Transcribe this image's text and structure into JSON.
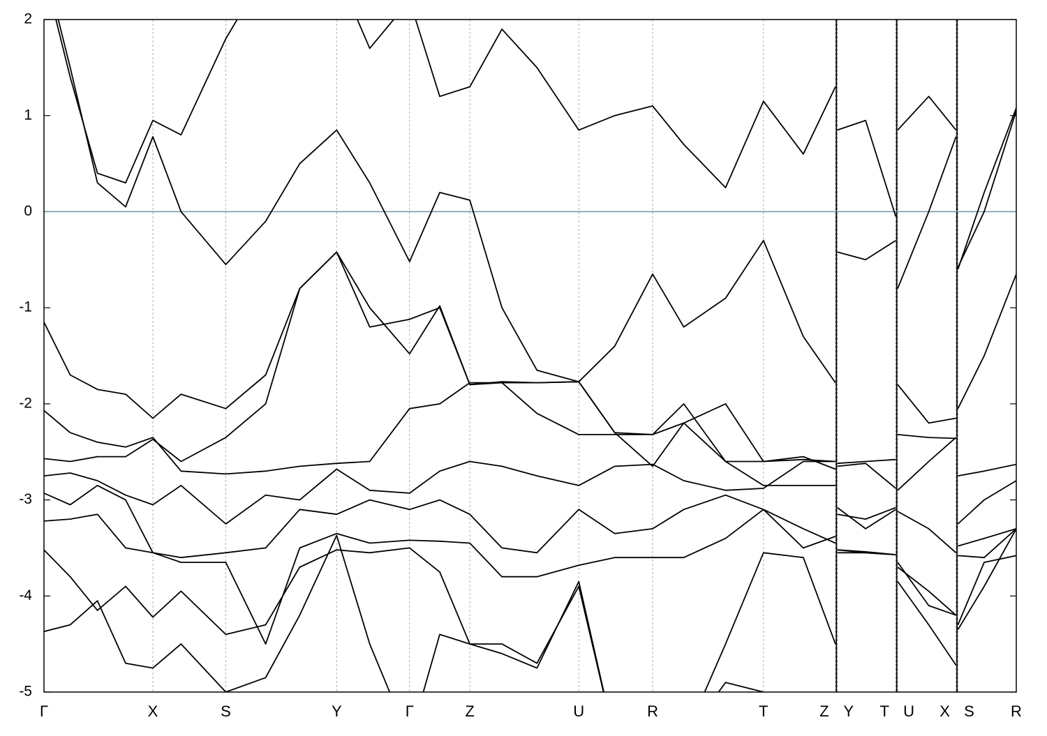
{
  "chart_data": {
    "type": "line",
    "x": [
      0,
      0.027,
      0.055,
      0.084,
      0.112,
      0.141,
      0.187,
      0.228,
      0.263,
      0.301,
      0.335,
      0.376,
      0.407,
      0.438,
      0.471,
      0.507,
      0.55,
      0.587,
      0.626,
      0.658,
      0.701,
      0.74,
      0.781,
      0.814,
      0.815,
      0.816,
      0.845,
      0.876,
      0.877,
      0.878,
      0.91,
      0.938,
      0.939,
      0.94,
      0.967,
      1
    ],
    "series": [
      {
        "color": "#000000",
        "values": [
          2.6,
          1.5,
          0.3,
          0.05,
          0.78,
          0.0,
          -0.55,
          -0.1,
          0.5,
          0.85,
          0.3,
          -0.52,
          0.2,
          0.12,
          -1.0,
          -1.65,
          -1.77,
          -1.4,
          -0.65,
          -1.2,
          -0.9,
          -0.3,
          -1.3,
          -1.78,
          null,
          -0.42,
          -0.5,
          -0.3,
          null,
          -0.8,
          0.0,
          0.78,
          null,
          -0.58,
          0.0,
          1.05
        ]
      },
      {
        "color": "#000000",
        "values": [
          2.5,
          1.4,
          0.4,
          0.3,
          0.95,
          0.8,
          1.8,
          2.5,
          2.5,
          2.5,
          1.7,
          2.2,
          1.2,
          1.3,
          1.9,
          1.5,
          0.85,
          1.0,
          1.1,
          0.7,
          0.25,
          1.15,
          0.6,
          1.3,
          null,
          0.85,
          0.95,
          -0.05,
          null,
          0.85,
          1.2,
          0.85,
          null,
          -0.6,
          0.2,
          1.08
        ]
      },
      {
        "color": "#000000",
        "values": [
          -1.15,
          -1.7,
          -1.85,
          -1.9,
          -2.15,
          -1.9,
          -2.05,
          -1.7,
          -0.8,
          -0.42,
          -1.2,
          -1.12,
          -1.0,
          -1.8,
          -1.77,
          -1.78,
          -1.77,
          -2.3,
          -2.32,
          -2.2,
          -2.0,
          -2.6,
          -2.58,
          -2.6,
          null,
          -2.62,
          -2.6,
          -2.58,
          null,
          -1.8,
          -2.2,
          -2.15,
          null,
          -2.05,
          -1.5,
          -0.65
        ]
      },
      {
        "color": "#000000",
        "values": [
          -2.07,
          -2.3,
          -2.4,
          -2.45,
          -2.35,
          -2.7,
          -2.73,
          -2.7,
          -2.65,
          -2.62,
          -2.6,
          -2.05,
          -2.0,
          -1.78,
          -1.78,
          -2.1,
          -2.32,
          -2.32,
          -2.32,
          -2.0,
          -2.6,
          -2.6,
          -2.55,
          -2.68,
          null,
          -2.65,
          -2.62,
          -2.88,
          null,
          -2.32,
          -2.35,
          -2.36,
          null,
          -2.75,
          -2.7,
          -2.63
        ]
      },
      {
        "color": "#000000",
        "values": [
          -2.57,
          -2.6,
          -2.55,
          -2.55,
          -2.37,
          -2.6,
          -2.35,
          -2.0,
          -0.8,
          -0.42,
          -1.0,
          -1.48,
          -0.98,
          -1.8,
          -1.78,
          -1.78,
          -1.77,
          -2.3,
          -2.65,
          -2.2,
          -2.6,
          -2.85,
          -2.85,
          -2.85,
          null,
          -3.15,
          -3.2,
          -3.08,
          null,
          -2.9,
          -2.6,
          -2.35,
          null,
          -3.25,
          -3.0,
          -2.8
        ]
      },
      {
        "color": "#000000",
        "values": [
          -2.75,
          -2.72,
          -2.8,
          -2.95,
          -3.05,
          -2.85,
          -3.25,
          -2.95,
          -3.0,
          -2.68,
          -2.9,
          -2.93,
          -2.7,
          -2.6,
          -2.65,
          -2.75,
          -2.85,
          -2.65,
          -2.63,
          -2.8,
          -2.9,
          -2.88,
          -2.6,
          -2.6,
          null,
          -3.08,
          -3.3,
          -3.1,
          null,
          -3.12,
          -3.3,
          -3.55,
          null,
          -3.48,
          -3.4,
          -3.3
        ]
      },
      {
        "color": "#000000",
        "values": [
          -2.93,
          -3.05,
          -2.85,
          -3.0,
          -3.55,
          -3.6,
          -3.55,
          -3.5,
          -3.1,
          -3.15,
          -3.0,
          -3.1,
          -3.0,
          -3.15,
          -3.5,
          -3.55,
          -3.1,
          -3.35,
          -3.3,
          -3.1,
          -2.95,
          -3.1,
          -3.3,
          -3.45,
          null,
          -3.52,
          -3.55,
          -3.57,
          null,
          -3.7,
          -3.95,
          -4.2,
          null,
          -4.3,
          -3.65,
          -3.58
        ]
      },
      {
        "color": "#000000",
        "values": [
          -3.22,
          -3.2,
          -3.15,
          -3.5,
          -3.55,
          -3.65,
          -3.65,
          -4.5,
          -3.5,
          -3.35,
          -3.45,
          -3.42,
          -3.43,
          -3.45,
          -3.8,
          -3.8,
          -3.68,
          -3.6,
          -3.6,
          -3.6,
          -3.4,
          -3.1,
          -3.5,
          -3.38,
          null,
          -3.55,
          -3.55,
          -3.57,
          null,
          -3.85,
          -4.3,
          -4.72,
          null,
          -3.58,
          -3.6,
          -3.3
        ]
      },
      {
        "color": "#000000",
        "values": [
          -3.52,
          -3.8,
          -4.15,
          -3.9,
          -4.22,
          -3.95,
          -4.4,
          -4.3,
          -3.7,
          -3.52,
          -3.55,
          -3.5,
          -3.75,
          -4.5,
          -4.5,
          -4.7,
          -3.9,
          -5.5,
          -5.5,
          -5.5,
          -4.5,
          -3.55,
          -3.6,
          -4.5,
          null,
          -3.52,
          -3.54,
          -3.57,
          null,
          -3.65,
          -4.1,
          -4.2,
          null,
          -4.35,
          -3.9,
          -3.3
        ]
      },
      {
        "color": "#000000",
        "values": [
          -4.37,
          -4.3,
          -4.05,
          -4.7,
          -4.75,
          -4.5,
          -5.0,
          -4.85,
          -4.2,
          -3.37,
          -4.5,
          -5.5,
          -4.4,
          -4.5,
          -4.6,
          -4.75,
          -3.85,
          -5.5,
          -5.5,
          -5.5,
          -4.9,
          -5.0,
          -5.5,
          -5.5,
          null,
          null,
          null,
          null,
          null,
          null,
          null,
          null,
          null,
          null,
          null,
          null
        ]
      }
    ],
    "xlim": [
      0,
      1
    ],
    "ylim": [
      -5,
      2
    ],
    "yticks": [
      -5,
      -4,
      -3,
      -2,
      -1,
      0,
      1,
      2
    ],
    "xticks": [
      {
        "value": 0,
        "label": "Γ"
      },
      {
        "value": 0.112,
        "label": "X"
      },
      {
        "value": 0.187,
        "label": "S"
      },
      {
        "value": 0.301,
        "label": "Y"
      },
      {
        "value": 0.376,
        "label": "Γ"
      },
      {
        "value": 0.438,
        "label": "Z"
      },
      {
        "value": 0.55,
        "label": "U"
      },
      {
        "value": 0.626,
        "label": "R"
      },
      {
        "value": 0.74,
        "label": "T"
      },
      {
        "value": 0.814,
        "label": "Z"
      },
      {
        "value": 0.816,
        "label": "Y"
      },
      {
        "value": 0.876,
        "label": "T"
      },
      {
        "value": 0.878,
        "label": "U"
      },
      {
        "value": 0.938,
        "label": "X"
      },
      {
        "value": 0.94,
        "label": "S"
      },
      {
        "value": 1,
        "label": "R"
      }
    ],
    "breaks": [
      0.815,
      0.877,
      0.939
    ],
    "fermi_level": 0,
    "fermi_color": "#4aa3bd",
    "grid": true
  }
}
